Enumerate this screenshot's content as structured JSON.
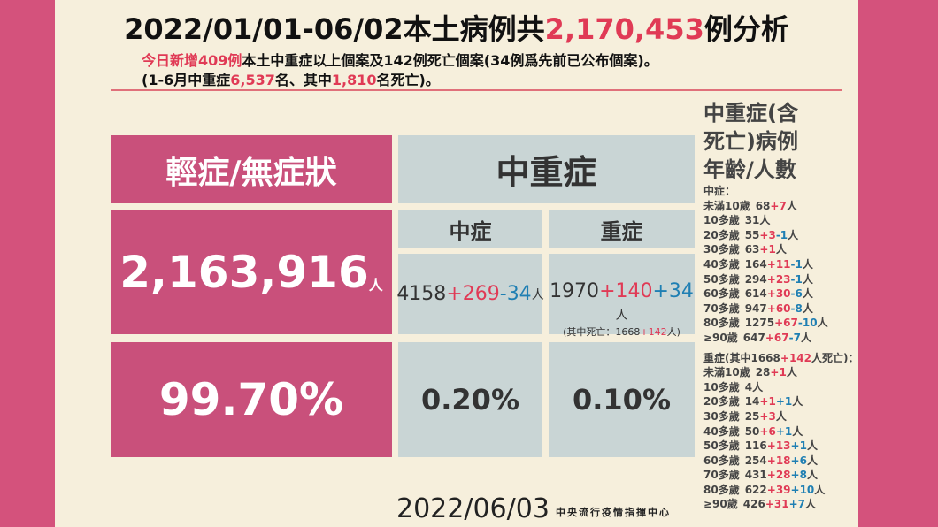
{
  "header": {
    "title": [
      "2022/01/01-06/02本土病例共",
      "2,170,453",
      "例分析"
    ],
    "line1": [
      "今日新增409例",
      "本土中重症以上個案及142例死亡個案(34例爲先前已公布個案)。"
    ],
    "line2": [
      "(1-6月中重症",
      "6,537",
      "名、其中",
      "1,810",
      "名死亡)。"
    ]
  },
  "table": {
    "mild": {
      "header": "輕症/無症狀",
      "count": "2,163,916",
      "unit": "人",
      "percent": "99.70%"
    },
    "group_header": "中重症",
    "moderate": {
      "label": "中症",
      "count": [
        "4158",
        "+269",
        "-34",
        "人"
      ],
      "percent": "0.20%"
    },
    "severe": {
      "label": "重症",
      "count": [
        "1970",
        "+140",
        "+34",
        "人"
      ],
      "note": [
        "(其中死亡：1668",
        "+142",
        "人)"
      ],
      "percent": "0.10%"
    }
  },
  "side": {
    "heading": [
      "中重症(含",
      "死亡)病例",
      "年齡/人數"
    ],
    "moderate": {
      "title": [
        "中症："
      ],
      "rows": [
        {
          "age": "未滿10歲",
          "base": "68",
          "parts": [
            "+7"
          ],
          "unit": "人"
        },
        {
          "age": "10多歲",
          "base": "31",
          "parts": [],
          "unit": "人"
        },
        {
          "age": "20多歲",
          "base": "55",
          "parts": [
            "+3",
            "-1"
          ],
          "unit": "人"
        },
        {
          "age": "30多歲",
          "base": "63",
          "parts": [
            "+1"
          ],
          "unit": "人"
        },
        {
          "age": "40多歲",
          "base": "164",
          "parts": [
            "+11",
            "-1"
          ],
          "unit": "人"
        },
        {
          "age": "50多歲",
          "base": "294",
          "parts": [
            "+23",
            "-1"
          ],
          "unit": "人"
        },
        {
          "age": "60多歲",
          "base": "614",
          "parts": [
            "+30",
            "-6"
          ],
          "unit": "人"
        },
        {
          "age": "70多歲",
          "base": "947",
          "parts": [
            "+60",
            "-8"
          ],
          "unit": "人"
        },
        {
          "age": "80多歲",
          "base": "1275",
          "parts": [
            "+67",
            "-10"
          ],
          "unit": "人"
        },
        {
          "age": "≥90歲",
          "base": "647",
          "parts": [
            "+67",
            "-7"
          ],
          "unit": "人"
        }
      ]
    },
    "severe": {
      "title": [
        "重症(其中1668",
        "+142",
        "人死亡)："
      ],
      "rows": [
        {
          "age": "未滿10歲",
          "base": "28",
          "parts": [
            "+1"
          ],
          "unit": "人"
        },
        {
          "age": "10多歲",
          "base": "4",
          "parts": [],
          "unit": "人"
        },
        {
          "age": "20多歲",
          "base": "14",
          "parts": [
            "+1",
            "+1"
          ],
          "unit": "人"
        },
        {
          "age": "30多歲",
          "base": "25",
          "parts": [
            "+3"
          ],
          "unit": "人"
        },
        {
          "age": "40多歲",
          "base": "50",
          "parts": [
            "+6",
            "+1"
          ],
          "unit": "人"
        },
        {
          "age": "50多歲",
          "base": "116",
          "parts": [
            "+13",
            "+1"
          ],
          "unit": "人"
        },
        {
          "age": "60多歲",
          "base": "254",
          "parts": [
            "+18",
            "+6"
          ],
          "unit": "人"
        },
        {
          "age": "70多歲",
          "base": "431",
          "parts": [
            "+28",
            "+8"
          ],
          "unit": "人"
        },
        {
          "age": "80多歲",
          "base": "622",
          "parts": [
            "+39",
            "+10"
          ],
          "unit": "人"
        },
        {
          "age": "≥90歲",
          "base": "426",
          "parts": [
            "+31",
            "+7"
          ],
          "unit": "人"
        }
      ]
    }
  },
  "footer": {
    "date": "2022/06/03",
    "source": "中央流行疫情指揮中心"
  }
}
